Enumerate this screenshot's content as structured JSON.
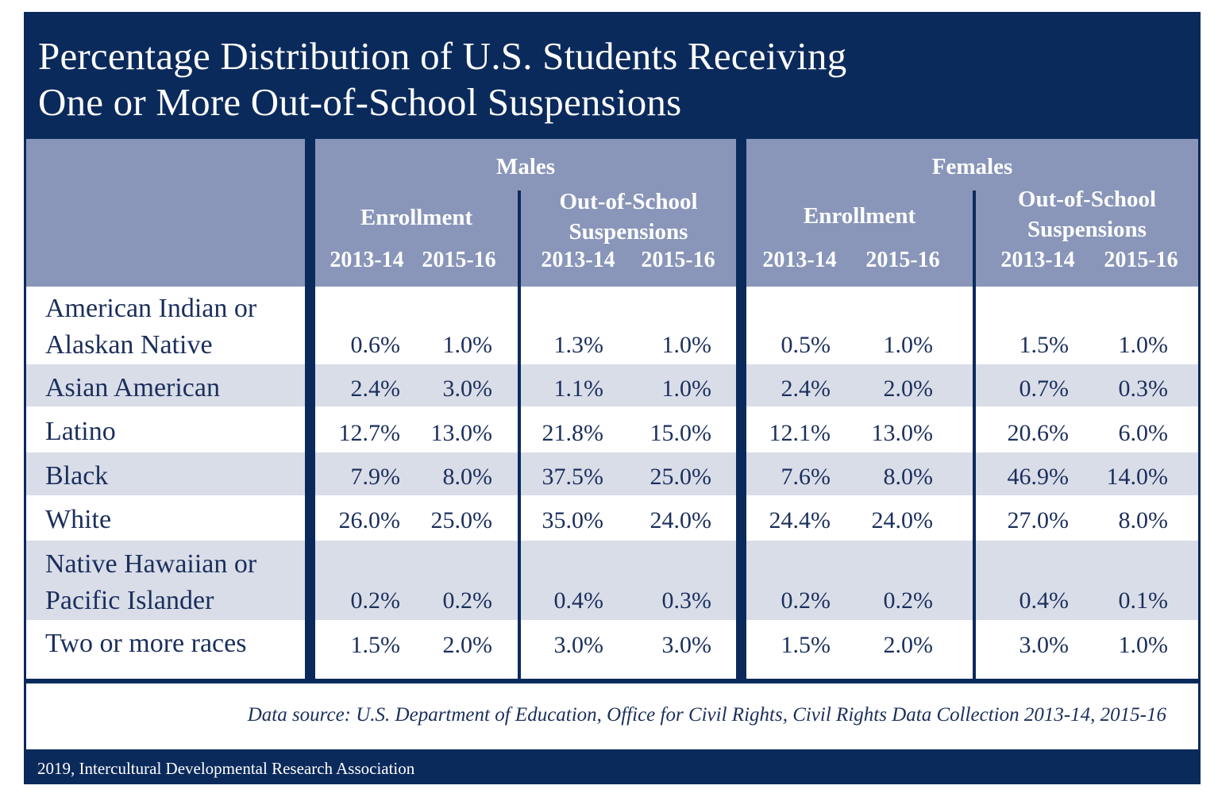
{
  "title_line1": "Percentage Distribution of U.S. Students Receiving",
  "title_line2": "One or More Out-of-School Suspensions",
  "groups": {
    "males": "Males",
    "females": "Females"
  },
  "sub_headers": {
    "enrollment": "Enrollment",
    "suspensions_line1": "Out-of-School",
    "suspensions_line2": "Suspensions"
  },
  "years": [
    "2013-14",
    "2015-16"
  ],
  "source": "Data source: U.S. Department of Education, Office for Civil Rights, Civil Rights Data Collection 2013-14, 2015-16",
  "credit": "2019, Intercultural Developmental Research Association",
  "colors": {
    "navy": "#0b2a5c",
    "header_blue": "#8996b9",
    "band": "#d9dde8",
    "text": "#1b2f5c"
  },
  "chart_data": {
    "type": "table",
    "title": "Percentage Distribution of U.S. Students Receiving One or More Out-of-School Suspensions",
    "columns": [
      "Males Enrollment 2013-14",
      "Males Enrollment 2015-16",
      "Males Out-of-School Suspensions 2013-14",
      "Males Out-of-School Suspensions 2015-16",
      "Females Enrollment 2013-14",
      "Females Enrollment 2015-16",
      "Females Out-of-School Suspensions 2013-14",
      "Females Out-of-School Suspensions 2015-16"
    ],
    "rows": [
      {
        "label": [
          "American Indian or",
          "Alaskan Native"
        ],
        "values": [
          "0.6%",
          "1.0%",
          "1.3%",
          "1.0%",
          "0.5%",
          "1.0%",
          "1.5%",
          "1.0%"
        ]
      },
      {
        "label": [
          "Asian American"
        ],
        "values": [
          "2.4%",
          "3.0%",
          "1.1%",
          "1.0%",
          "2.4%",
          "2.0%",
          "0.7%",
          "0.3%"
        ]
      },
      {
        "label": [
          "Latino"
        ],
        "values": [
          "12.7%",
          "13.0%",
          "21.8%",
          "15.0%",
          "12.1%",
          "13.0%",
          "20.6%",
          "6.0%"
        ]
      },
      {
        "label": [
          "Black"
        ],
        "values": [
          "7.9%",
          "8.0%",
          "37.5%",
          "25.0%",
          "7.6%",
          "8.0%",
          "46.9%",
          "14.0%"
        ]
      },
      {
        "label": [
          "White"
        ],
        "values": [
          "26.0%",
          "25.0%",
          "35.0%",
          "24.0%",
          "24.4%",
          "24.0%",
          "27.0%",
          "8.0%"
        ]
      },
      {
        "label": [
          "Native Hawaiian or",
          "Pacific Islander"
        ],
        "values": [
          "0.2%",
          "0.2%",
          "0.4%",
          "0.3%",
          "0.2%",
          "0.2%",
          "0.4%",
          "0.1%"
        ]
      },
      {
        "label": [
          "Two or more races"
        ],
        "values": [
          "1.5%",
          "2.0%",
          "3.0%",
          "3.0%",
          "1.5%",
          "2.0%",
          "3.0%",
          "1.0%"
        ]
      }
    ]
  }
}
